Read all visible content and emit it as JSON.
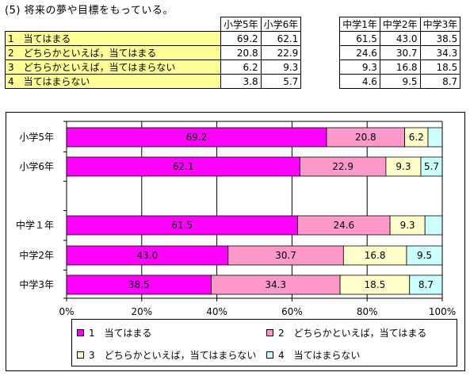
{
  "title": "(5) 将来の夢や目標をもっている。",
  "table": {
    "columns": [
      "小学5年",
      "小学6年",
      "中学1年",
      "中学2年",
      "中学3年"
    ],
    "rows": [
      {
        "label": "1　当てはまる",
        "values": [
          "69.2",
          "62.1",
          "61.5",
          "43.0",
          "38.5"
        ]
      },
      {
        "label": "2　どちらかといえば，当てはまる",
        "values": [
          "20.8",
          "22.9",
          "24.6",
          "30.7",
          "34.3"
        ]
      },
      {
        "label": "3　どちらかといえば，当てはまらない",
        "values": [
          "6.2",
          "9.3",
          "9.3",
          "16.8",
          "18.5"
        ]
      },
      {
        "label": "4　当てはまらない",
        "values": [
          "3.8",
          "5.7",
          "4.6",
          "9.5",
          "8.7"
        ]
      }
    ]
  },
  "chart_data": {
    "type": "bar",
    "orientation": "horizontal",
    "stacked": true,
    "percent": true,
    "categories": [
      "小学5年",
      "小学6年",
      "",
      "中学１年",
      "中学2年",
      "中学3年"
    ],
    "series": [
      {
        "name": "1　当てはまる",
        "color": "#ff00ff",
        "values": [
          69.2,
          62.1,
          null,
          61.5,
          43.0,
          38.5
        ]
      },
      {
        "name": "2　どちらかといえば，当てはまる",
        "color": "#ff99cc",
        "values": [
          20.8,
          22.9,
          null,
          24.6,
          30.7,
          34.3
        ]
      },
      {
        "name": "3　どちらかといえば，当てはまらない",
        "color": "#ffffcc",
        "values": [
          6.2,
          9.3,
          null,
          9.3,
          16.8,
          18.5
        ]
      },
      {
        "name": "4　当てはまらない",
        "color": "#ccffff",
        "values": [
          3.8,
          5.7,
          null,
          4.6,
          9.5,
          8.7
        ]
      }
    ],
    "data_labels": [
      [
        "69.2",
        "20.8",
        "6.2",
        ""
      ],
      [
        "62.1",
        "22.9",
        "9.3",
        "5.7"
      ],
      [
        "",
        "",
        "",
        ""
      ],
      [
        "61.5",
        "24.6",
        "9.3",
        ""
      ],
      [
        "43.0",
        "30.7",
        "16.8",
        "9.5"
      ],
      [
        "38.5",
        "34.3",
        "18.5",
        "8.7"
      ]
    ],
    "xlim": [
      0,
      100
    ],
    "xticks": [
      "0%",
      "20%",
      "40%",
      "60%",
      "80%",
      "100%"
    ],
    "grid": true,
    "legend_position": "bottom"
  }
}
